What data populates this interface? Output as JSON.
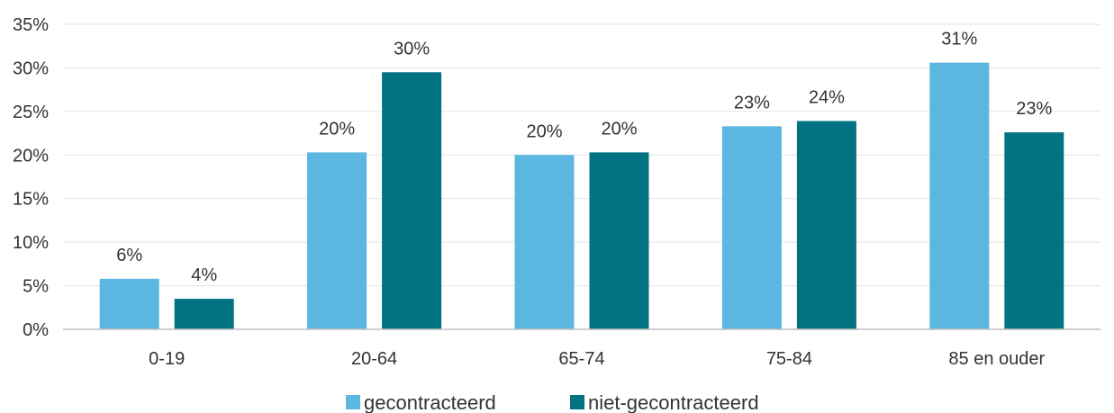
{
  "chart_data": {
    "type": "bar",
    "categories": [
      "0-19",
      "20-64",
      "65-74",
      "75-84",
      "85 en ouder"
    ],
    "series": [
      {
        "name": "gecontracteerd",
        "color": "#5bb6e0",
        "values": [
          5.8,
          20.3,
          20.0,
          23.3,
          30.6
        ],
        "labels": [
          "6%",
          "20%",
          "20%",
          "23%",
          "31%"
        ]
      },
      {
        "name": "niet-gecontracteerd",
        "color": "#027382",
        "values": [
          3.5,
          29.5,
          20.3,
          23.9,
          22.6
        ],
        "labels": [
          "4%",
          "30%",
          "20%",
          "24%",
          "23%"
        ]
      }
    ],
    "ylim": [
      0,
      35
    ],
    "yticks": [
      "0%",
      "5%",
      "10%",
      "15%",
      "20%",
      "25%",
      "30%",
      "35%"
    ],
    "grid": true,
    "legend_position": "bottom"
  }
}
